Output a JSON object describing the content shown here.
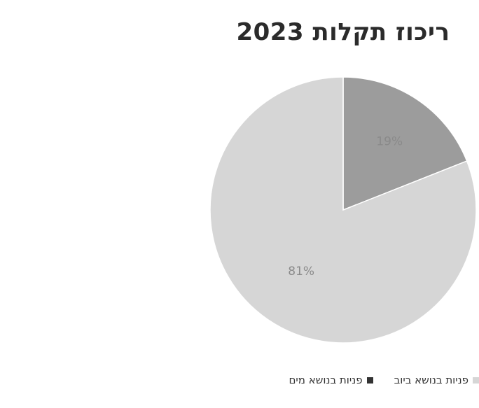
{
  "chart_data": {
    "type": "pie",
    "title": "ריכוז תקלות 2023",
    "slices": [
      {
        "label": "פניות בנושא מים",
        "value": 19,
        "display": "19%",
        "color": "#9c9c9c"
      },
      {
        "label": "פניות בנושא ביוב",
        "value": 81,
        "display": "81%",
        "color": "#d6d6d6"
      }
    ],
    "legend_position": "bottom"
  }
}
